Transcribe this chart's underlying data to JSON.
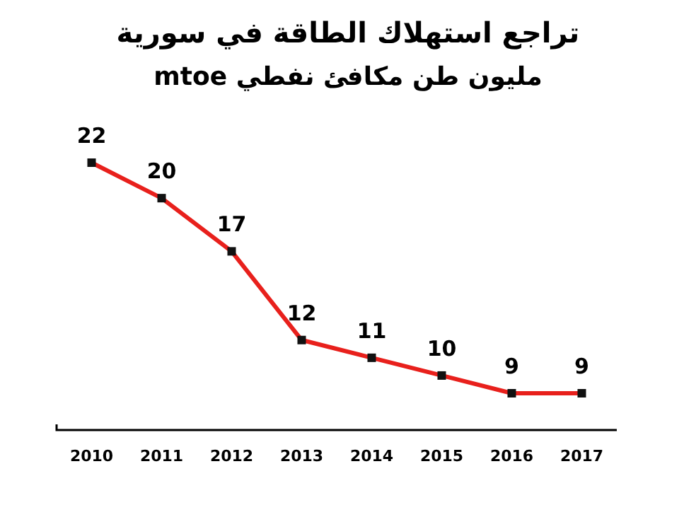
{
  "chart_data": {
    "type": "line",
    "title": "تراجع استهلاك الطاقة في سورية",
    "subtitle": "مليون طن مكافئ نفطي mtoe",
    "categories": [
      "2010",
      "2011",
      "2012",
      "2013",
      "2014",
      "2015",
      "2016",
      "2017"
    ],
    "series": [
      {
        "color": "#e8201c",
        "values": [
          22,
          20,
          17,
          12,
          11,
          10,
          9,
          9
        ]
      }
    ],
    "marker": "square",
    "line_style": "solid",
    "data_labels": true
  }
}
